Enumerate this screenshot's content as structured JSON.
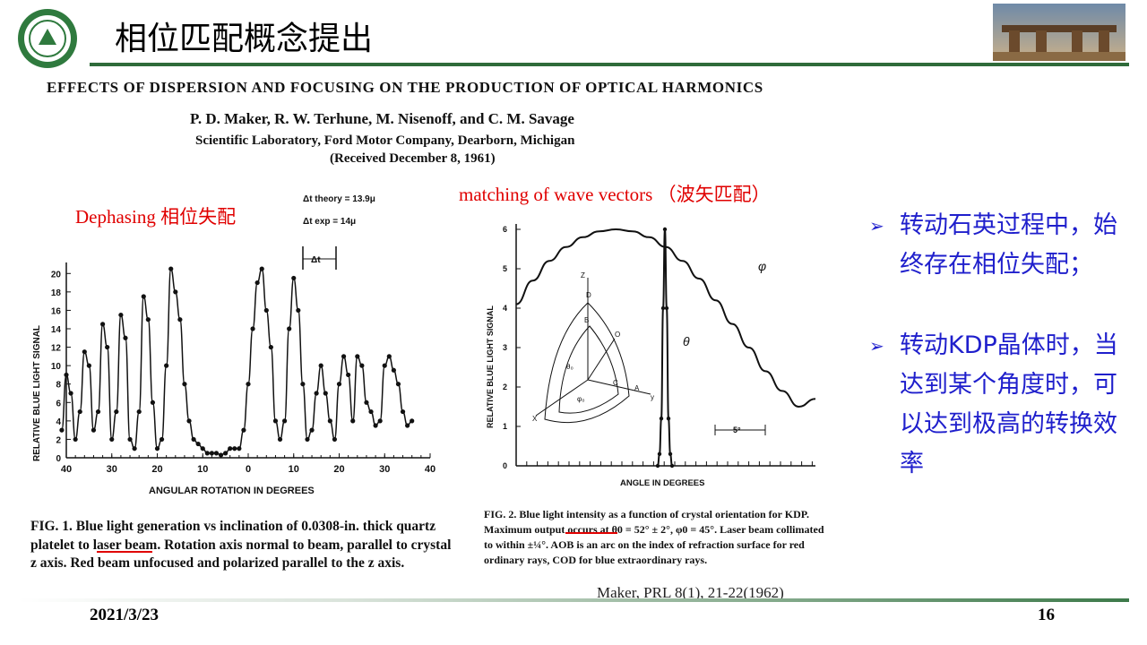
{
  "slide": {
    "title": "相位匹配概念提出",
    "date": "2021/3/23",
    "page_number": "16",
    "citation": "Maker, PRL 8(1), 21-22(1962)"
  },
  "paper": {
    "title": "EFFECTS OF DISPERSION AND FOCUSING ON THE PRODUCTION OF OPTICAL HARMONICS",
    "authors": "P. D. Maker, R. W. Terhune, M. Nisenoff, and C. M. Savage",
    "affiliation": "Scientific Laboratory, Ford Motor Company, Dearborn, Michigan",
    "received": "(Received December 8, 1961)"
  },
  "annotations": {
    "dephasing": "Dephasing 相位失配",
    "matching": "matching of wave vectors （波矢匹配）"
  },
  "bullets": [
    "转动石英过程中，始终存在相位失配；",
    "转动KDP晶体时，当达到某个角度时，可以达到极高的转换效率"
  ],
  "colors": {
    "accent_red": "#e00000",
    "bullet_blue": "#1f1fcc",
    "line_green": "#2f6b3a"
  },
  "figure1": {
    "caption": "FIG. 1. Blue light generation vs inclination of 0.0308-in. thick quartz platelet to laser beam. Rotation axis normal to beam, parallel to crystal z axis. Red beam unfocused and polarized parallel to the z axis.",
    "delta_theory": "Δt theory = 13.9μ",
    "delta_exp": "Δt exp = 14μ",
    "delta_marker": "Δt"
  },
  "figure2": {
    "caption": "FIG. 2. Blue light intensity as a function of crystal orientation for KDP. Maximum output occurs at θ0 = 52° ± 2°, φ0 = 45°. Laser beam collimated to within ±¼°. AOB is an arc on the index of refraction surface for red ordinary rays, COD for blue extraordinary rays.",
    "scale_marker": "5°",
    "phi_label": "φ",
    "theta_label": "θ"
  },
  "chart_data": [
    {
      "type": "scatter",
      "title": "",
      "xlabel": "ANGULAR ROTATION IN DEGREES",
      "ylabel": "RELATIVE BLUE LIGHT SIGNAL",
      "xlim": [
        -40,
        40
      ],
      "ylim": [
        0,
        21
      ],
      "x_ticks": [
        "40",
        "30",
        "20",
        "10",
        "0",
        "10",
        "20",
        "30",
        "40"
      ],
      "y_ticks": [
        "0",
        "2",
        "4",
        "6",
        "8",
        "10",
        "12",
        "14",
        "16",
        "18",
        "20"
      ],
      "grid": false,
      "series": [
        {
          "x": [
            -41,
            -40,
            -39,
            -38,
            -37,
            -36,
            -35,
            -34,
            -33,
            -32,
            -31,
            -30,
            -29,
            -28,
            -27,
            -26,
            -25,
            -24,
            -23,
            -22,
            -21,
            -20,
            -19,
            -18,
            -17,
            -16,
            -15,
            -14,
            -13,
            -12,
            -11,
            -10,
            -9,
            -8,
            -7,
            -6,
            -5,
            -4,
            -3,
            -2,
            -1,
            0,
            1,
            2,
            3,
            4,
            5,
            6,
            7,
            8,
            9,
            10,
            11,
            12,
            13,
            14,
            15,
            16,
            17,
            18,
            19,
            20,
            21,
            22,
            23,
            24,
            25,
            26,
            27,
            28,
            29,
            30,
            31,
            32,
            33,
            34,
            35,
            36
          ],
          "y": [
            3,
            9,
            7,
            2,
            5,
            11.5,
            10,
            3,
            5,
            14.5,
            12,
            2,
            5,
            15.5,
            13,
            2,
            1,
            5,
            17.5,
            15,
            6,
            1,
            2,
            10,
            20.5,
            18,
            15,
            8,
            4,
            2,
            1.5,
            1,
            0.5,
            0.5,
            0.5,
            0.3,
            0.5,
            1,
            1,
            1,
            3,
            8,
            14,
            19,
            20.5,
            16,
            12,
            4,
            2,
            4,
            14,
            19.5,
            16,
            8,
            2,
            3,
            7,
            10,
            7,
            4,
            2,
            8,
            11,
            9,
            4,
            11,
            10,
            6,
            5,
            3.5,
            4,
            10,
            11,
            9.5,
            8,
            5,
            3.5,
            4
          ]
        }
      ]
    },
    {
      "type": "line",
      "title": "",
      "xlabel": "ANGLE IN DEGREES",
      "ylabel": "RELATIVE BLUE LIGHT SIGNAL",
      "ylim": [
        0,
        6
      ],
      "y_ticks": [
        "0",
        "1",
        "2",
        "3",
        "4",
        "5",
        "6"
      ],
      "grid": false,
      "series": [
        {
          "name": "φ",
          "x": [
            0,
            5,
            10,
            15,
            20,
            25,
            30,
            35,
            40,
            45,
            50,
            55,
            60,
            65,
            70,
            75,
            80,
            85,
            90
          ],
          "y": [
            4.1,
            4.7,
            5.2,
            5.55,
            5.8,
            5.95,
            6.0,
            5.95,
            5.8,
            5.55,
            5.2,
            4.75,
            4.2,
            3.6,
            3.0,
            2.4,
            1.9,
            1.5,
            1.7
          ]
        },
        {
          "name": "θ",
          "x": [
            -2,
            -1.5,
            -1,
            -0.5,
            0,
            0.5,
            1,
            1.5,
            2
          ],
          "y": [
            0,
            0.3,
            1.2,
            4.0,
            6.0,
            4.0,
            1.2,
            0.3,
            0
          ]
        }
      ]
    }
  ]
}
